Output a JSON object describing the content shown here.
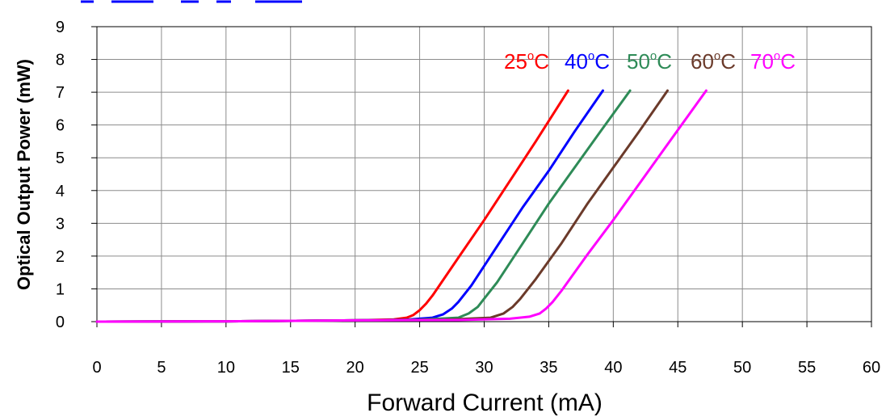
{
  "chart_data": {
    "type": "line",
    "title": "",
    "xlabel": "Forward Current (mA)",
    "ylabel": "Optical Output Power (mW)",
    "xlim": [
      0,
      60
    ],
    "ylim": [
      0,
      9
    ],
    "xticks": [
      0,
      5,
      10,
      15,
      20,
      25,
      30,
      35,
      40,
      45,
      50,
      55,
      60
    ],
    "yticks": [
      0,
      1,
      2,
      3,
      4,
      5,
      6,
      7,
      8,
      9
    ],
    "grid": true,
    "legend": "top-right",
    "degree_symbol": "o",
    "series": [
      {
        "name": "25",
        "unit": "C",
        "color": "#ff0000",
        "x": [
          0,
          10,
          20,
          23,
          24,
          24.5,
          25,
          25.5,
          26,
          28,
          30,
          32,
          34,
          36.5
        ],
        "y": [
          0,
          0.01,
          0.04,
          0.07,
          0.12,
          0.2,
          0.35,
          0.55,
          0.8,
          1.95,
          3.1,
          4.3,
          5.5,
          7.05
        ]
      },
      {
        "name": "40",
        "unit": "C",
        "color": "#0000ff",
        "x": [
          0,
          10,
          20,
          24,
          26,
          26.8,
          27.5,
          28,
          29,
          31,
          33,
          35,
          37,
          39.2
        ],
        "y": [
          0,
          0.01,
          0.04,
          0.06,
          0.12,
          0.22,
          0.4,
          0.6,
          1.1,
          2.3,
          3.5,
          4.6,
          5.8,
          7.05
        ]
      },
      {
        "name": "50",
        "unit": "C",
        "color": "#2e8b57",
        "x": [
          0,
          10,
          20,
          25,
          28,
          28.8,
          29.5,
          30,
          31,
          33,
          35,
          37,
          39,
          41.3
        ],
        "y": [
          0,
          0.01,
          0.04,
          0.06,
          0.12,
          0.25,
          0.45,
          0.7,
          1.2,
          2.4,
          3.6,
          4.7,
          5.8,
          7.05
        ]
      },
      {
        "name": "60",
        "unit": "C",
        "color": "#6b3a2a",
        "x": [
          0,
          10,
          20,
          27,
          30.5,
          31.5,
          32.2,
          32.8,
          34,
          36,
          38,
          40,
          42,
          44.2
        ],
        "y": [
          0,
          0.01,
          0.04,
          0.06,
          0.12,
          0.25,
          0.45,
          0.7,
          1.3,
          2.4,
          3.6,
          4.7,
          5.8,
          7.05
        ]
      },
      {
        "name": "70",
        "unit": "C",
        "color": "#ff00ff",
        "x": [
          0,
          10,
          20,
          28,
          32,
          33.5,
          34.3,
          34.8,
          35.3,
          36,
          38,
          40,
          42,
          44,
          47.2
        ],
        "y": [
          0,
          0.01,
          0.04,
          0.05,
          0.09,
          0.15,
          0.25,
          0.4,
          0.6,
          0.95,
          2.05,
          3.1,
          4.2,
          5.3,
          7.05
        ]
      }
    ]
  }
}
